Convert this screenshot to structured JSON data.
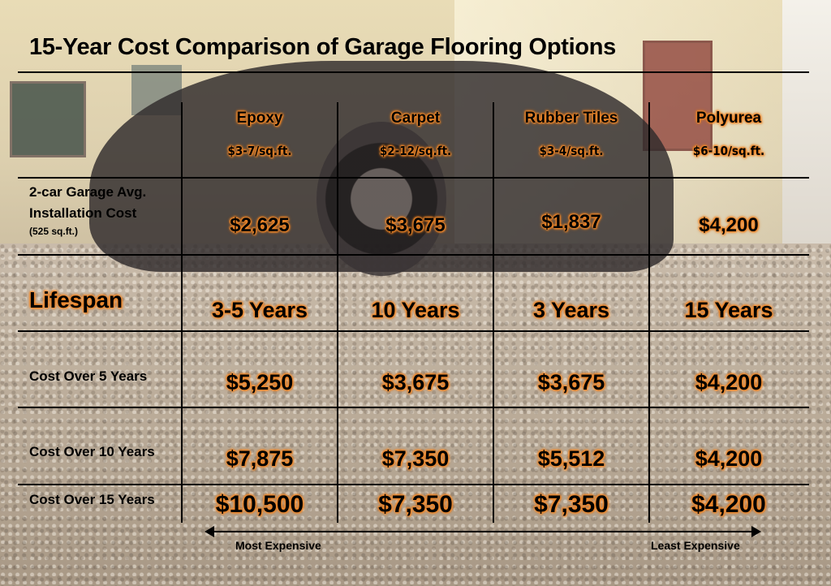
{
  "chart_data": {
    "type": "table",
    "title": "15-Year Cost Comparison of Garage Flooring Options",
    "columns": [
      {
        "name": "Epoxy",
        "price": "$3-7/sq.ft."
      },
      {
        "name": "Carpet",
        "price": "$2-12/sq.ft."
      },
      {
        "name": "Rubber Tiles",
        "price": "$3-4/sq.ft."
      },
      {
        "name": "Polyurea",
        "price": "$6-10/sq.ft."
      }
    ],
    "rows": [
      {
        "label_line1": "2-car Garage Avg.",
        "label_line2": "Installation Cost",
        "label_note": "(525 sq.ft.)",
        "values": [
          "$2,625",
          "$3,675",
          "$1,837",
          "$4,200"
        ]
      },
      {
        "label": "Lifespan",
        "values": [
          "3-5 Years",
          "10 Years",
          "3 Years",
          "15 Years"
        ]
      },
      {
        "label": "Cost Over 5 Years",
        "values": [
          "$5,250",
          "$3,675",
          "$3,675",
          "$4,200"
        ]
      },
      {
        "label": "Cost Over 10 Years",
        "values": [
          "$7,875",
          "$7,350",
          "$5,512",
          "$4,200"
        ]
      },
      {
        "label": "Cost Over 15 Years",
        "values": [
          "$10,500",
          "$7,350",
          "$7,350",
          "$4,200"
        ]
      }
    ],
    "axis_left": "Most Expensive",
    "axis_right": "Least Expensive"
  }
}
